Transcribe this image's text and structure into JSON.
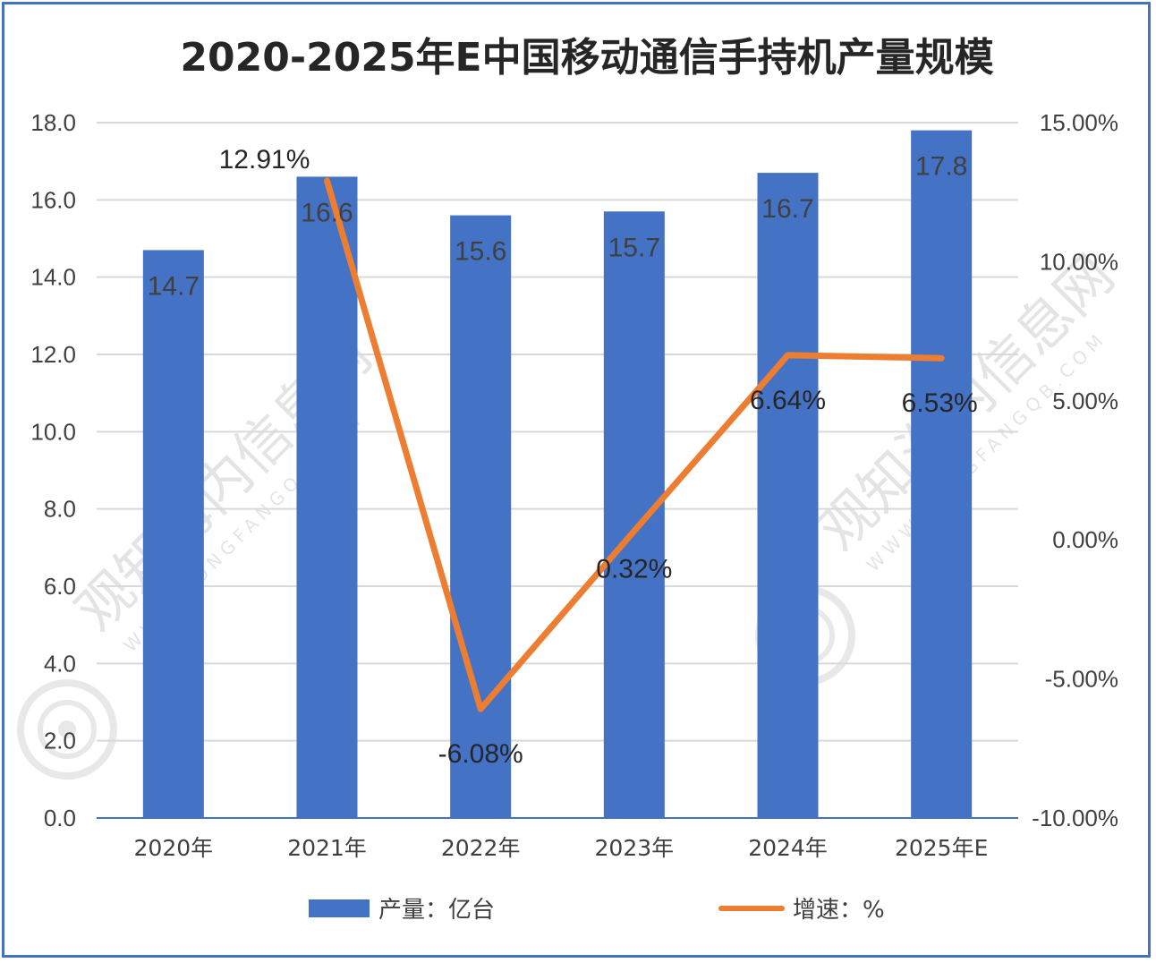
{
  "chart_data": {
    "type": "bar",
    "title": "2020-2025年E中国移动通信手持机产量规模",
    "categories": [
      "2020年",
      "2021年",
      "2022年",
      "2023年",
      "2024年",
      "2025年E"
    ],
    "series": [
      {
        "name": "产量：亿台",
        "type": "bar",
        "axis": "left",
        "values": [
          14.7,
          16.6,
          15.6,
          15.7,
          16.7,
          17.8
        ],
        "labels": [
          "14.7",
          "16.6",
          "15.6",
          "15.7",
          "16.7",
          "17.8"
        ],
        "color": "#4472C4"
      },
      {
        "name": "增速：%",
        "type": "line",
        "axis": "right",
        "values": [
          12.91,
          -6.08,
          0.32,
          6.64,
          6.53
        ],
        "x": [
          "2021年",
          "2022年",
          "2023年",
          "2024年",
          "2025年E"
        ],
        "labels": [
          "12.91%",
          "-6.08%",
          "0.32%",
          "6.64%",
          "6.53%"
        ],
        "color": "#ED7D31"
      }
    ],
    "y_left": {
      "ylim": [
        0,
        18
      ],
      "ticks": [
        "0.0",
        "2.0",
        "4.0",
        "6.0",
        "8.0",
        "10.0",
        "12.0",
        "14.0",
        "16.0",
        "18.0"
      ]
    },
    "y_right": {
      "ylim": [
        -10,
        15
      ],
      "ticks": [
        "-10.00%",
        "-5.00%",
        "0.00%",
        "5.00%",
        "10.00%",
        "15.00%"
      ]
    },
    "grid": true,
    "legend": "bottom"
  },
  "watermark": {
    "text": "观知海内信息网",
    "url": "WWW.DONGFANGQB.COM"
  }
}
